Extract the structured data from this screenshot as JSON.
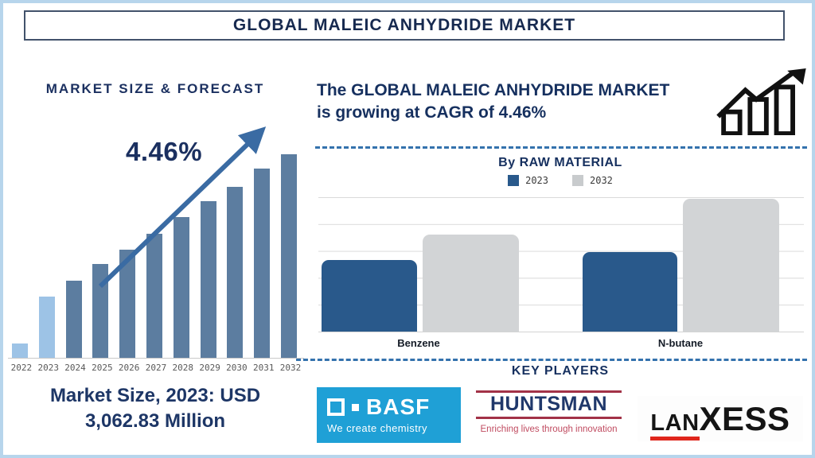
{
  "title": "GLOBAL MALEIC ANHYDRIDE MARKET",
  "left_panel": {
    "heading": "MARKET SIZE & FORECAST",
    "cagr_label": "4.46%",
    "stat_line1": "Market Size, 2023: USD",
    "stat_line2": "3,062.83 Million"
  },
  "right_panel": {
    "headline_line1": "The GLOBAL MALEIC ANHYDRIDE MARKET",
    "headline_line2": "is growing at CAGR of 4.46%",
    "raw_material_heading": "By RAW MATERIAL",
    "legend": [
      {
        "label": "2023",
        "color": "#29598b"
      },
      {
        "label": "2032",
        "color": "#c8cbcd"
      }
    ],
    "key_players_heading": "KEY PLAYERS",
    "logos": {
      "basf": {
        "name": "BASF",
        "tagline": "We create chemistry",
        "bg_color": "#1fa0d6"
      },
      "huntsman": {
        "name": "HUNTSMAN",
        "tagline": "Enriching lives through innovation",
        "text_color": "#20386b",
        "line_color": "#a23247"
      },
      "lanxess": {
        "name_part1": "LAN",
        "name_part2": "XESS",
        "underline_color": "#e0261c"
      }
    }
  },
  "colors": {
    "navy_text": "#1b3060",
    "light_blue_bar": "#9dc3e6",
    "steel_blue_bar": "#5c7da0",
    "arrow_blue": "#3a6ba3",
    "dashed_divider_blue": "#3472ad",
    "frame_border": "#b7d5ec"
  },
  "chart_data": [
    {
      "id": "market-size-forecast",
      "type": "bar",
      "title": "MARKET SIZE & FORECAST",
      "categories": [
        "2022",
        "2023",
        "2024",
        "2025",
        "2026",
        "2027",
        "2028",
        "2029",
        "2030",
        "2031",
        "2032"
      ],
      "values_relative_pct": [
        7,
        30,
        38,
        46,
        53,
        61,
        69,
        77,
        84,
        93,
        100
      ],
      "annotation": "4.46%",
      "known_value": {
        "year": "2023",
        "value_usd_million": 3062.83
      },
      "light_bar_count": 2,
      "light_bar_color": "#9dc3e6",
      "bar_color": "#5c7da0",
      "y_axis": "hidden",
      "grid": false
    },
    {
      "id": "by-raw-material",
      "type": "grouped-bar",
      "title": "By RAW MATERIAL",
      "categories": [
        "Benzene",
        "N-butane"
      ],
      "series": [
        {
          "name": "2023",
          "color": "#29598b",
          "values_relative_pct": [
            53,
            59
          ]
        },
        {
          "name": "2032",
          "color": "#d2d4d6",
          "values_relative_pct": [
            72,
            99
          ]
        }
      ],
      "y_axis": "hidden",
      "grid": true,
      "legend_position": "top"
    }
  ]
}
